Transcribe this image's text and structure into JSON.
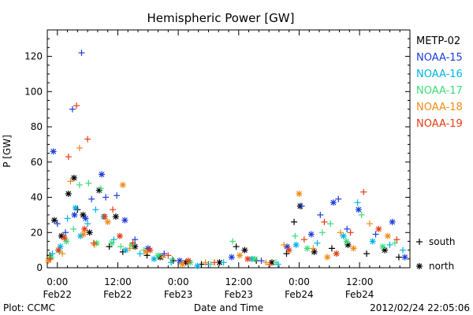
{
  "chart_data": {
    "type": "scatter",
    "title": "Hemispheric Power [GW]",
    "ylabel": "P [GW]",
    "xlabel": "Date and Time",
    "ylim": [
      0,
      135
    ],
    "xlim_hours": [
      -2,
      70
    ],
    "yticks": [
      0,
      20,
      40,
      60,
      80,
      100,
      120
    ],
    "xticks": [
      {
        "hour": 0,
        "time": "0:00",
        "date": "Feb22"
      },
      {
        "hour": 12,
        "time": "12:00",
        "date": "Feb22"
      },
      {
        "hour": 24,
        "time": "0:00",
        "date": "Feb23"
      },
      {
        "hour": 36,
        "time": "12:00",
        "date": "Feb23"
      },
      {
        "hour": 48,
        "time": "0:00",
        "date": "Feb24"
      },
      {
        "hour": 60,
        "time": "12:00",
        "date": "Feb24"
      }
    ],
    "marker_legend": [
      {
        "symbol": "+",
        "label": "south"
      },
      {
        "symbol": "*",
        "label": "north"
      }
    ],
    "series": [
      {
        "name": "METP-02",
        "color": "#000000",
        "points": [
          {
            "h": -1.5,
            "v": 7,
            "m": "+"
          },
          {
            "h": -0.6,
            "v": 27,
            "m": "*"
          },
          {
            "h": 0.8,
            "v": 18,
            "m": "*"
          },
          {
            "h": 2.2,
            "v": 42,
            "m": "*"
          },
          {
            "h": 3.3,
            "v": 51,
            "m": "*"
          },
          {
            "h": 4.0,
            "v": 33,
            "m": "+"
          },
          {
            "h": 5.1,
            "v": 30,
            "m": "*"
          },
          {
            "h": 6.4,
            "v": 20,
            "m": "*"
          },
          {
            "h": 8.3,
            "v": 44,
            "m": "*"
          },
          {
            "h": 10.3,
            "v": 12,
            "m": "+"
          },
          {
            "h": 11.6,
            "v": 29,
            "m": "*"
          },
          {
            "h": 13.0,
            "v": 9,
            "m": "+"
          },
          {
            "h": 15.4,
            "v": 12,
            "m": "*"
          },
          {
            "h": 17.8,
            "v": 7,
            "m": "+"
          },
          {
            "h": 20.4,
            "v": 6,
            "m": "*"
          },
          {
            "h": 23.0,
            "v": 4,
            "m": "+"
          },
          {
            "h": 25.5,
            "v": 3,
            "m": "*"
          },
          {
            "h": 28.6,
            "v": 2,
            "m": "+"
          },
          {
            "h": 32.2,
            "v": 3,
            "m": "*"
          },
          {
            "h": 35.5,
            "v": 12,
            "m": "+"
          },
          {
            "h": 37.2,
            "v": 10,
            "m": "*"
          },
          {
            "h": 39.5,
            "v": 4,
            "m": "+"
          },
          {
            "h": 42.6,
            "v": 3,
            "m": "*"
          },
          {
            "h": 45.5,
            "v": 8,
            "m": "+"
          },
          {
            "h": 47.0,
            "v": 26,
            "m": "+"
          },
          {
            "h": 48.2,
            "v": 35,
            "m": "*"
          },
          {
            "h": 51.0,
            "v": 9,
            "m": "*"
          },
          {
            "h": 54.5,
            "v": 11,
            "m": "+"
          },
          {
            "h": 57.7,
            "v": 13,
            "m": "*"
          },
          {
            "h": 61.4,
            "v": 8,
            "m": "+"
          },
          {
            "h": 65.0,
            "v": 10,
            "m": "*"
          },
          {
            "h": 67.8,
            "v": 6,
            "m": "+"
          }
        ]
      },
      {
        "name": "NOAA-15",
        "color": "#1e3cdc",
        "points": [
          {
            "h": -0.8,
            "v": 66,
            "m": "*"
          },
          {
            "h": 0.0,
            "v": 25,
            "m": "+"
          },
          {
            "h": 1.6,
            "v": 20,
            "m": "+"
          },
          {
            "h": 3.0,
            "v": 90,
            "m": "+"
          },
          {
            "h": 3.4,
            "v": 30,
            "m": "*"
          },
          {
            "h": 4.8,
            "v": 122,
            "m": "+"
          },
          {
            "h": 5.6,
            "v": 28,
            "m": "*"
          },
          {
            "h": 6.8,
            "v": 39,
            "m": "+"
          },
          {
            "h": 8.8,
            "v": 53,
            "m": "*"
          },
          {
            "h": 9.6,
            "v": 40,
            "m": "+"
          },
          {
            "h": 11.8,
            "v": 41,
            "m": "+"
          },
          {
            "h": 13.4,
            "v": 27,
            "m": "*"
          },
          {
            "h": 15.4,
            "v": 16,
            "m": "+"
          },
          {
            "h": 18.0,
            "v": 11,
            "m": "*"
          },
          {
            "h": 21.2,
            "v": 8,
            "m": "+"
          },
          {
            "h": 24.3,
            "v": 4,
            "m": "*"
          },
          {
            "h": 30.0,
            "v": 2,
            "m": "+"
          },
          {
            "h": 34.6,
            "v": 6,
            "m": "*"
          },
          {
            "h": 40.5,
            "v": 4,
            "m": "+"
          },
          {
            "h": 45.6,
            "v": 12,
            "m": "*"
          },
          {
            "h": 48.5,
            "v": 35,
            "m": "+"
          },
          {
            "h": 50.4,
            "v": 19,
            "m": "*"
          },
          {
            "h": 52.2,
            "v": 30,
            "m": "+"
          },
          {
            "h": 54.8,
            "v": 37,
            "m": "*"
          },
          {
            "h": 55.8,
            "v": 39,
            "m": "+"
          },
          {
            "h": 57.5,
            "v": 22,
            "m": "+"
          },
          {
            "h": 59.8,
            "v": 33,
            "m": "*"
          },
          {
            "h": 63.2,
            "v": 19,
            "m": "+"
          },
          {
            "h": 66.5,
            "v": 26,
            "m": "*"
          },
          {
            "h": 69.0,
            "v": 6,
            "m": "*"
          }
        ]
      },
      {
        "name": "NOAA-16",
        "color": "#00b4e6",
        "points": [
          {
            "h": -1.0,
            "v": 8,
            "m": "+"
          },
          {
            "h": 0.6,
            "v": 12,
            "m": "*"
          },
          {
            "h": 2.0,
            "v": 28,
            "m": "+"
          },
          {
            "h": 3.6,
            "v": 34,
            "m": "*"
          },
          {
            "h": 4.6,
            "v": 18,
            "m": "*"
          },
          {
            "h": 6.0,
            "v": 25,
            "m": "+"
          },
          {
            "h": 7.6,
            "v": 33,
            "m": "+"
          },
          {
            "h": 9.2,
            "v": 29,
            "m": "*"
          },
          {
            "h": 11.2,
            "v": 16,
            "m": "+"
          },
          {
            "h": 13.6,
            "v": 10,
            "m": "*"
          },
          {
            "h": 16.4,
            "v": 8,
            "m": "+"
          },
          {
            "h": 19.2,
            "v": 5,
            "m": "*"
          },
          {
            "h": 22.6,
            "v": 3,
            "m": "+"
          },
          {
            "h": 27.8,
            "v": 1,
            "m": "*"
          },
          {
            "h": 33.0,
            "v": 3,
            "m": "+"
          },
          {
            "h": 38.6,
            "v": 5,
            "m": "*"
          },
          {
            "h": 43.8,
            "v": 2,
            "m": "+"
          },
          {
            "h": 47.4,
            "v": 13,
            "m": "*"
          },
          {
            "h": 51.6,
            "v": 14,
            "m": "+"
          },
          {
            "h": 56.8,
            "v": 18,
            "m": "*"
          },
          {
            "h": 59.6,
            "v": 37,
            "m": "+"
          },
          {
            "h": 62.6,
            "v": 15,
            "m": "*"
          },
          {
            "h": 66.0,
            "v": 13,
            "m": "+"
          },
          {
            "h": 68.6,
            "v": 10,
            "m": "+"
          }
        ]
      },
      {
        "name": "NOAA-17",
        "color": "#3cdc78",
        "points": [
          {
            "h": -1.2,
            "v": 6,
            "m": "*"
          },
          {
            "h": 0.4,
            "v": 9,
            "m": "+"
          },
          {
            "h": 1.8,
            "v": 15,
            "m": "*"
          },
          {
            "h": 3.2,
            "v": 22,
            "m": "+"
          },
          {
            "h": 4.4,
            "v": 47,
            "m": "+"
          },
          {
            "h": 6.2,
            "v": 48,
            "m": "+"
          },
          {
            "h": 7.8,
            "v": 14,
            "m": "*"
          },
          {
            "h": 8.6,
            "v": 45,
            "m": "+"
          },
          {
            "h": 10.8,
            "v": 14,
            "m": "*"
          },
          {
            "h": 12.6,
            "v": 12,
            "m": "+"
          },
          {
            "h": 14.8,
            "v": 13,
            "m": "*"
          },
          {
            "h": 17.2,
            "v": 10,
            "m": "+"
          },
          {
            "h": 20.0,
            "v": 7,
            "m": "*"
          },
          {
            "h": 22.8,
            "v": 5,
            "m": "+"
          },
          {
            "h": 26.4,
            "v": 3,
            "m": "*"
          },
          {
            "h": 30.4,
            "v": 2,
            "m": "+"
          },
          {
            "h": 34.8,
            "v": 15,
            "m": "+"
          },
          {
            "h": 39.2,
            "v": 5,
            "m": "*"
          },
          {
            "h": 43.4,
            "v": 3,
            "m": "+"
          },
          {
            "h": 47.2,
            "v": 18,
            "m": "+"
          },
          {
            "h": 49.6,
            "v": 11,
            "m": "*"
          },
          {
            "h": 52.6,
            "v": 20,
            "m": "+"
          },
          {
            "h": 54.2,
            "v": 25,
            "m": "+"
          },
          {
            "h": 57.4,
            "v": 15,
            "m": "*"
          },
          {
            "h": 60.4,
            "v": 30,
            "m": "+"
          },
          {
            "h": 64.6,
            "v": 12,
            "m": "*"
          },
          {
            "h": 67.0,
            "v": 14,
            "m": "+"
          }
        ]
      },
      {
        "name": "NOAA-18",
        "color": "#f08c14",
        "points": [
          {
            "h": -1.8,
            "v": 4,
            "m": "*"
          },
          {
            "h": 1.0,
            "v": 8,
            "m": "+"
          },
          {
            "h": 2.6,
            "v": 49,
            "m": "+"
          },
          {
            "h": 4.4,
            "v": 68,
            "m": "+"
          },
          {
            "h": 5.2,
            "v": 19,
            "m": "*"
          },
          {
            "h": 7.4,
            "v": 13,
            "m": "+"
          },
          {
            "h": 10.0,
            "v": 26,
            "m": "*"
          },
          {
            "h": 13.0,
            "v": 47,
            "m": "*"
          },
          {
            "h": 14.4,
            "v": 11,
            "m": "+"
          },
          {
            "h": 17.6,
            "v": 9,
            "m": "*"
          },
          {
            "h": 21.0,
            "v": 6,
            "m": "+"
          },
          {
            "h": 24.8,
            "v": 2,
            "m": "*"
          },
          {
            "h": 29.4,
            "v": 3,
            "m": "+"
          },
          {
            "h": 36.2,
            "v": 7,
            "m": "*"
          },
          {
            "h": 41.4,
            "v": 3,
            "m": "+"
          },
          {
            "h": 45.0,
            "v": 13,
            "m": "+"
          },
          {
            "h": 48.0,
            "v": 42,
            "m": "*"
          },
          {
            "h": 50.8,
            "v": 11,
            "m": "+"
          },
          {
            "h": 53.6,
            "v": 6,
            "m": "*"
          },
          {
            "h": 56.2,
            "v": 20,
            "m": "+"
          },
          {
            "h": 58.8,
            "v": 11,
            "m": "*"
          },
          {
            "h": 62.0,
            "v": 25,
            "m": "+"
          },
          {
            "h": 65.6,
            "v": 18,
            "m": "*"
          }
        ]
      },
      {
        "name": "NOAA-19",
        "color": "#e63c14",
        "points": [
          {
            "h": -1.4,
            "v": 5,
            "m": "+"
          },
          {
            "h": 0.2,
            "v": 10,
            "m": "*"
          },
          {
            "h": 1.4,
            "v": 17,
            "m": "*"
          },
          {
            "h": 2.2,
            "v": 63,
            "m": "+"
          },
          {
            "h": 3.8,
            "v": 92,
            "m": "+"
          },
          {
            "h": 5.4,
            "v": 22,
            "m": "*"
          },
          {
            "h": 6.0,
            "v": 73,
            "m": "+"
          },
          {
            "h": 7.2,
            "v": 14,
            "m": "+"
          },
          {
            "h": 9.4,
            "v": 29,
            "m": "*"
          },
          {
            "h": 11.0,
            "v": 33,
            "m": "+"
          },
          {
            "h": 12.4,
            "v": 18,
            "m": "*"
          },
          {
            "h": 15.0,
            "v": 14,
            "m": "+"
          },
          {
            "h": 18.4,
            "v": 10,
            "m": "*"
          },
          {
            "h": 22.0,
            "v": 7,
            "m": "+"
          },
          {
            "h": 26.0,
            "v": 4,
            "m": "*"
          },
          {
            "h": 31.2,
            "v": 3,
            "m": "+"
          },
          {
            "h": 37.8,
            "v": 5,
            "m": "*"
          },
          {
            "h": 42.2,
            "v": 2,
            "m": "+"
          },
          {
            "h": 46.0,
            "v": 10,
            "m": "*"
          },
          {
            "h": 49.0,
            "v": 16,
            "m": "+"
          },
          {
            "h": 53.0,
            "v": 26,
            "m": "+"
          },
          {
            "h": 55.4,
            "v": 8,
            "m": "*"
          },
          {
            "h": 58.2,
            "v": 20,
            "m": "+"
          },
          {
            "h": 60.8,
            "v": 43,
            "m": "+"
          },
          {
            "h": 63.8,
            "v": 22,
            "m": "*"
          },
          {
            "h": 67.4,
            "v": 16,
            "m": "+"
          }
        ]
      }
    ]
  },
  "footer": {
    "plot_credit": "Plot: CCMC",
    "axis_title": "Date and Time",
    "timestamp": "2012/02/24 22:05:06"
  }
}
